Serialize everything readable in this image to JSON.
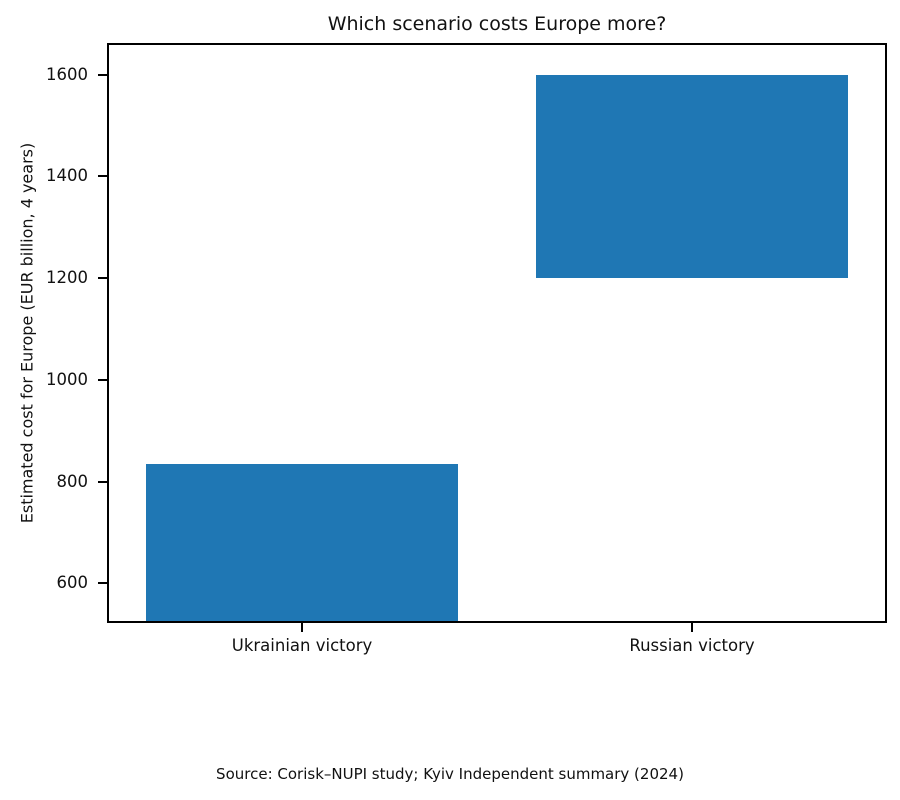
{
  "figure": {
    "background": "#ffffff"
  },
  "chart_data": {
    "type": "bar",
    "title": "Which scenario costs Europe more?",
    "ylabel": "Estimated cost for Europe (EUR billion, 4 years)",
    "xlabel": "",
    "categories": [
      "Ukrainian victory",
      "Russian victory"
    ],
    "bars": [
      {
        "label": "Ukrainian victory",
        "bottom": null,
        "top": 835,
        "note": "bar rises from the x-axis; baseline clipped at axis bottom"
      },
      {
        "label": "Russian victory",
        "bottom": 1200,
        "top": 1600,
        "note": "floating bar spanning the 1200-1600 range"
      }
    ],
    "yticks": [
      600,
      800,
      1000,
      1200,
      1400,
      1600
    ],
    "ylim": [
      522,
      1662
    ],
    "bar_color": "#1f77b4",
    "bar_width_fraction": 0.8,
    "grid": false,
    "legend_position": "none",
    "source": "Source: Corisk–NUPI study; Kyiv Independent summary (2024)"
  }
}
